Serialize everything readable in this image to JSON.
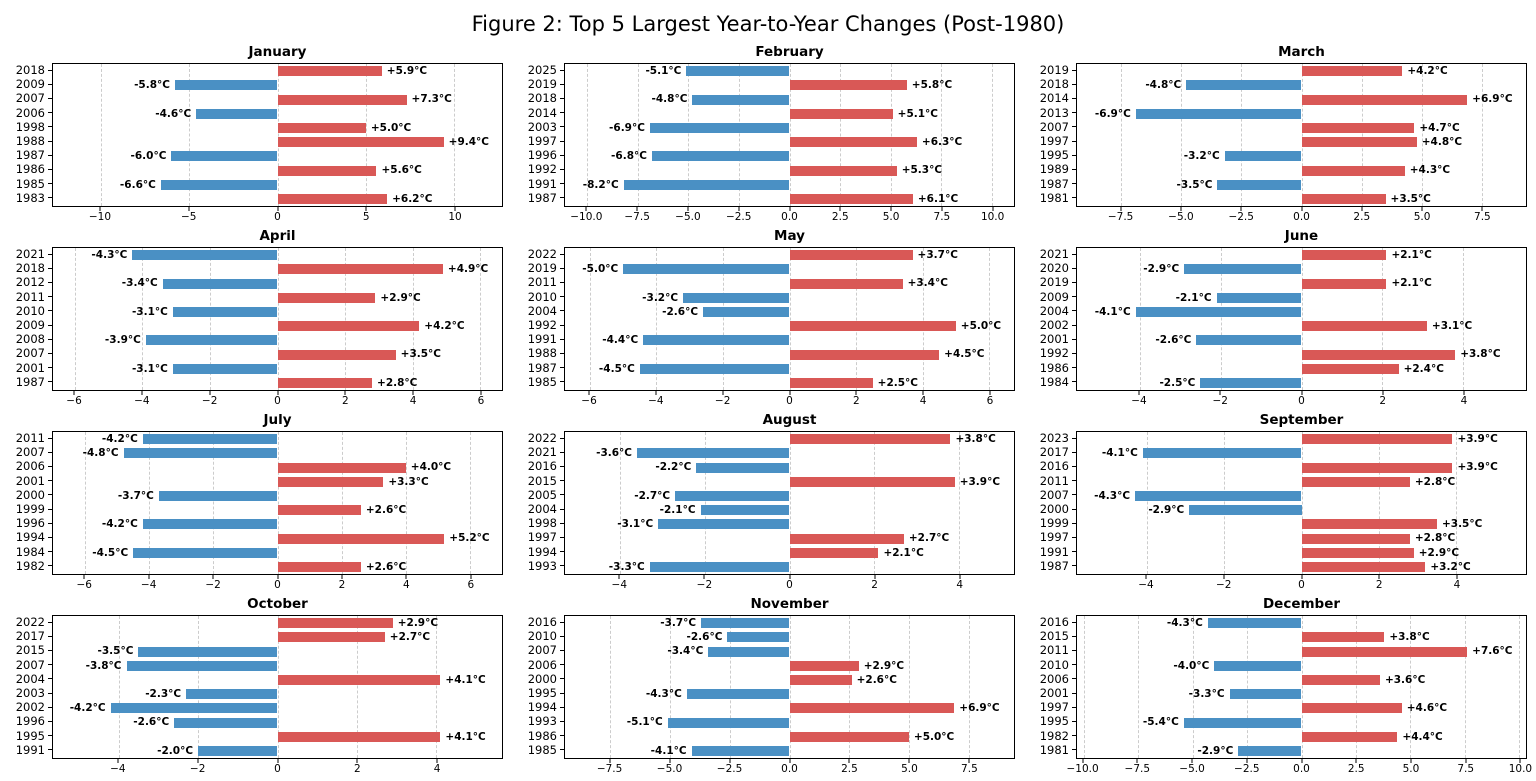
{
  "figure": {
    "title": "Figure 2: Top 5 Largest Year-to-Year Changes (Post-1980)"
  },
  "colors": {
    "positive": "#d95856",
    "negative": "#4a90c4",
    "grid": "#cccccc",
    "text": "#000000"
  },
  "chart_data": [
    {
      "type": "bar",
      "orientation": "horizontal",
      "title": "January",
      "xlim": [
        -12.7,
        12.7
      ],
      "categories": [
        "2018",
        "2009",
        "2007",
        "2006",
        "1998",
        "1988",
        "1987",
        "1986",
        "1985",
        "1983"
      ],
      "values": [
        5.9,
        -5.8,
        7.3,
        -4.6,
        5.0,
        9.4,
        -6.0,
        5.6,
        -6.6,
        6.2
      ],
      "labels": [
        "+5.9°C",
        "-5.8°C",
        "+7.3°C",
        "-4.6°C",
        "+5.0°C",
        "+9.4°C",
        "-6.0°C",
        "+5.6°C",
        "-6.6°C",
        "+6.2°C"
      ],
      "xtick_values": [
        -10,
        -5,
        0,
        5,
        10
      ],
      "xtick_labels": [
        "−10",
        "−5",
        "0",
        "5",
        "10"
      ]
    },
    {
      "type": "bar",
      "orientation": "horizontal",
      "title": "February",
      "xlim": [
        -11.1,
        11.1
      ],
      "categories": [
        "2025",
        "2019",
        "2018",
        "2014",
        "2003",
        "1997",
        "1996",
        "1992",
        "1991",
        "1987"
      ],
      "values": [
        -5.1,
        5.8,
        -4.8,
        5.1,
        -6.9,
        6.3,
        -6.8,
        5.3,
        -8.2,
        6.1
      ],
      "labels": [
        "-5.1°C",
        "+5.8°C",
        "-4.8°C",
        "+5.1°C",
        "-6.9°C",
        "+6.3°C",
        "-6.8°C",
        "+5.3°C",
        "-8.2°C",
        "+6.1°C"
      ],
      "xtick_values": [
        -10,
        -7.5,
        -5,
        -2.5,
        0,
        2.5,
        5,
        7.5,
        10
      ],
      "xtick_labels": [
        "−10.0",
        "−7.5",
        "−5.0",
        "−2.5",
        "0.0",
        "2.5",
        "5.0",
        "7.5",
        "10.0"
      ]
    },
    {
      "type": "bar",
      "orientation": "horizontal",
      "title": "March",
      "xlim": [
        -9.35,
        9.35
      ],
      "categories": [
        "2019",
        "2018",
        "2014",
        "2013",
        "2007",
        "1997",
        "1995",
        "1989",
        "1987",
        "1981"
      ],
      "values": [
        4.2,
        -4.8,
        6.9,
        -6.9,
        4.7,
        4.8,
        -3.2,
        4.3,
        -3.5,
        3.5
      ],
      "labels": [
        "+4.2°C",
        "-4.8°C",
        "+6.9°C",
        "-6.9°C",
        "+4.7°C",
        "+4.8°C",
        "-3.2°C",
        "+4.3°C",
        "-3.5°C",
        "+3.5°C"
      ],
      "xtick_values": [
        -7.5,
        -5,
        -2.5,
        0,
        2.5,
        5,
        7.5
      ],
      "xtick_labels": [
        "−7.5",
        "−5.0",
        "−2.5",
        "0.0",
        "2.5",
        "5.0",
        "7.5"
      ]
    },
    {
      "type": "bar",
      "orientation": "horizontal",
      "title": "April",
      "xlim": [
        -6.65,
        6.65
      ],
      "categories": [
        "2021",
        "2018",
        "2012",
        "2011",
        "2010",
        "2009",
        "2008",
        "2007",
        "2001",
        "1987"
      ],
      "values": [
        -4.3,
        4.9,
        -3.4,
        2.9,
        -3.1,
        4.2,
        -3.9,
        3.5,
        -3.1,
        2.8
      ],
      "labels": [
        "-4.3°C",
        "+4.9°C",
        "-3.4°C",
        "+2.9°C",
        "-3.1°C",
        "+4.2°C",
        "-3.9°C",
        "+3.5°C",
        "-3.1°C",
        "+2.8°C"
      ],
      "xtick_values": [
        -6,
        -4,
        -2,
        0,
        2,
        4,
        6
      ],
      "xtick_labels": [
        "−6",
        "−4",
        "−2",
        "0",
        "2",
        "4",
        "6"
      ]
    },
    {
      "type": "bar",
      "orientation": "horizontal",
      "title": "May",
      "xlim": [
        -6.75,
        6.75
      ],
      "categories": [
        "2022",
        "2019",
        "2011",
        "2010",
        "2004",
        "1992",
        "1991",
        "1988",
        "1987",
        "1985"
      ],
      "values": [
        3.7,
        -5.0,
        3.4,
        -3.2,
        -2.6,
        5.0,
        -4.4,
        4.5,
        -4.5,
        2.5
      ],
      "labels": [
        "+3.7°C",
        "-5.0°C",
        "+3.4°C",
        "-3.2°C",
        "-2.6°C",
        "+5.0°C",
        "-4.4°C",
        "+4.5°C",
        "-4.5°C",
        "+2.5°C"
      ],
      "xtick_values": [
        -6,
        -4,
        -2,
        0,
        2,
        4,
        6
      ],
      "xtick_labels": [
        "−6",
        "−4",
        "−2",
        "0",
        "2",
        "4",
        "6"
      ]
    },
    {
      "type": "bar",
      "orientation": "horizontal",
      "title": "June",
      "xlim": [
        -5.55,
        5.55
      ],
      "categories": [
        "2021",
        "2020",
        "2019",
        "2009",
        "2004",
        "2002",
        "2001",
        "1992",
        "1986",
        "1984"
      ],
      "values": [
        2.1,
        -2.9,
        2.1,
        -2.1,
        -4.1,
        3.1,
        -2.6,
        3.8,
        2.4,
        -2.5
      ],
      "labels": [
        "+2.1°C",
        "-2.9°C",
        "+2.1°C",
        "-2.1°C",
        "-4.1°C",
        "+3.1°C",
        "-2.6°C",
        "+3.8°C",
        "+2.4°C",
        "-2.5°C"
      ],
      "xtick_values": [
        -4,
        -2,
        0,
        2,
        4
      ],
      "xtick_labels": [
        "−4",
        "−2",
        "0",
        "2",
        "4"
      ]
    },
    {
      "type": "bar",
      "orientation": "horizontal",
      "title": "July",
      "xlim": [
        -7.0,
        7.0
      ],
      "categories": [
        "2011",
        "2007",
        "2006",
        "2001",
        "2000",
        "1999",
        "1996",
        "1994",
        "1984",
        "1982"
      ],
      "values": [
        -4.2,
        -4.8,
        4.0,
        3.3,
        -3.7,
        2.6,
        -4.2,
        5.2,
        -4.5,
        2.6
      ],
      "labels": [
        "-4.2°C",
        "-4.8°C",
        "+4.0°C",
        "+3.3°C",
        "-3.7°C",
        "+2.6°C",
        "-4.2°C",
        "+5.2°C",
        "-4.5°C",
        "+2.6°C"
      ],
      "xtick_values": [
        -6,
        -4,
        -2,
        0,
        2,
        4,
        6
      ],
      "xtick_labels": [
        "−6",
        "−4",
        "−2",
        "0",
        "2",
        "4",
        "6"
      ]
    },
    {
      "type": "bar",
      "orientation": "horizontal",
      "title": "August",
      "xlim": [
        -5.3,
        5.3
      ],
      "categories": [
        "2022",
        "2021",
        "2016",
        "2015",
        "2005",
        "2004",
        "1998",
        "1997",
        "1994",
        "1993"
      ],
      "values": [
        3.8,
        -3.6,
        -2.2,
        3.9,
        -2.7,
        -2.1,
        -3.1,
        2.7,
        2.1,
        -3.3
      ],
      "labels": [
        "+3.8°C",
        "-3.6°C",
        "-2.2°C",
        "+3.9°C",
        "-2.7°C",
        "-2.1°C",
        "-3.1°C",
        "+2.7°C",
        "+2.1°C",
        "-3.3°C"
      ],
      "xtick_values": [
        -4,
        -2,
        0,
        2,
        4
      ],
      "xtick_labels": [
        "−4",
        "−2",
        "0",
        "2",
        "4"
      ]
    },
    {
      "type": "bar",
      "orientation": "horizontal",
      "title": "September",
      "xlim": [
        -5.8,
        5.8
      ],
      "categories": [
        "2023",
        "2017",
        "2016",
        "2011",
        "2007",
        "2000",
        "1999",
        "1997",
        "1991",
        "1987"
      ],
      "values": [
        3.9,
        -4.1,
        3.9,
        2.8,
        -4.3,
        -2.9,
        3.5,
        2.8,
        2.9,
        3.2
      ],
      "labels": [
        "+3.9°C",
        "-4.1°C",
        "+3.9°C",
        "+2.8°C",
        "-4.3°C",
        "-2.9°C",
        "+3.5°C",
        "+2.8°C",
        "+2.9°C",
        "+3.2°C"
      ],
      "xtick_values": [
        -4,
        -2,
        0,
        2,
        4
      ],
      "xtick_labels": [
        "−4",
        "−2",
        "0",
        "2",
        "4"
      ]
    },
    {
      "type": "bar",
      "orientation": "horizontal",
      "title": "October",
      "xlim": [
        -5.65,
        5.65
      ],
      "categories": [
        "2022",
        "2017",
        "2015",
        "2007",
        "2004",
        "2003",
        "2002",
        "1996",
        "1995",
        "1991"
      ],
      "values": [
        2.9,
        2.7,
        -3.5,
        -3.8,
        4.1,
        -2.3,
        -4.2,
        -2.6,
        4.1,
        -2.0
      ],
      "labels": [
        "+2.9°C",
        "+2.7°C",
        "-3.5°C",
        "-3.8°C",
        "+4.1°C",
        "-2.3°C",
        "-4.2°C",
        "-2.6°C",
        "+4.1°C",
        "-2.0°C"
      ],
      "xtick_values": [
        -4,
        -2,
        0,
        2,
        4
      ],
      "xtick_labels": [
        "−4",
        "−2",
        "0",
        "2",
        "4"
      ]
    },
    {
      "type": "bar",
      "orientation": "horizontal",
      "title": "November",
      "xlim": [
        -9.4,
        9.4
      ],
      "categories": [
        "2016",
        "2010",
        "2007",
        "2006",
        "2000",
        "1995",
        "1994",
        "1993",
        "1986",
        "1985"
      ],
      "values": [
        -3.7,
        -2.6,
        -3.4,
        2.9,
        2.6,
        -4.3,
        6.9,
        -5.1,
        5.0,
        -4.1
      ],
      "labels": [
        "-3.7°C",
        "-2.6°C",
        "-3.4°C",
        "+2.9°C",
        "+2.6°C",
        "-4.3°C",
        "+6.9°C",
        "-5.1°C",
        "+5.0°C",
        "-4.1°C"
      ],
      "xtick_values": [
        -7.5,
        -5,
        -2.5,
        0,
        2.5,
        5,
        7.5
      ],
      "xtick_labels": [
        "−7.5",
        "−5.0",
        "−2.5",
        "0.0",
        "2.5",
        "5.0",
        "7.5"
      ]
    },
    {
      "type": "bar",
      "orientation": "horizontal",
      "title": "December",
      "xlim": [
        -10.3,
        10.3
      ],
      "categories": [
        "2016",
        "2015",
        "2011",
        "2010",
        "2006",
        "2001",
        "1997",
        "1995",
        "1982",
        "1981"
      ],
      "values": [
        -4.3,
        3.8,
        7.6,
        -4.0,
        3.6,
        -3.3,
        4.6,
        -5.4,
        4.4,
        -2.9
      ],
      "labels": [
        "-4.3°C",
        "+3.8°C",
        "+7.6°C",
        "-4.0°C",
        "+3.6°C",
        "-3.3°C",
        "+4.6°C",
        "-5.4°C",
        "+4.4°C",
        "-2.9°C"
      ],
      "xtick_values": [
        -10,
        -7.5,
        -5,
        -2.5,
        0,
        2.5,
        5,
        7.5,
        10
      ],
      "xtick_labels": [
        "−10.0",
        "−7.5",
        "−5.0",
        "−2.5",
        "0.0",
        "2.5",
        "5.0",
        "7.5",
        "10.0"
      ]
    }
  ]
}
